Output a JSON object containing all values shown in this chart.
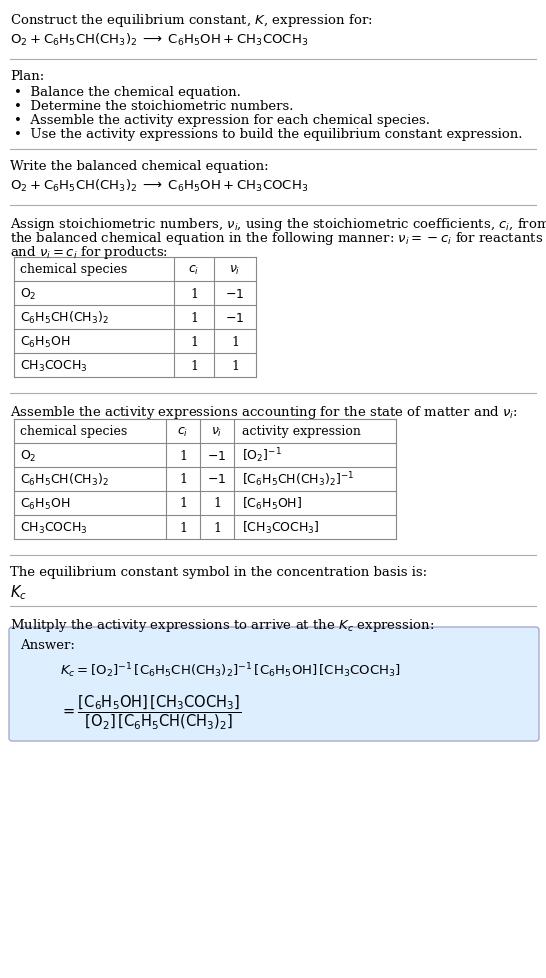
{
  "bg_color": "#ffffff",
  "text_color": "#000000",
  "answer_box_color": "#ddeeff",
  "title_line1": "Construct the equilibrium constant, $K$, expression for:",
  "title_line2": "$\\mathrm{O_2 + C_6H_5CH(CH_3)_2 \\;\\longrightarrow\\; C_6H_5OH + CH_3COCH_3}$",
  "plan_header": "Plan:",
  "plan_items": [
    "•  Balance the chemical equation.",
    "•  Determine the stoichiometric numbers.",
    "•  Assemble the activity expression for each chemical species.",
    "•  Use the activity expressions to build the equilibrium constant expression."
  ],
  "balanced_header": "Write the balanced chemical equation:",
  "balanced_eq": "$\\mathrm{O_2 + C_6H_5CH(CH_3)_2 \\;\\longrightarrow\\; C_6H_5OH + CH_3COCH_3}$",
  "stoich_header1": "Assign stoichiometric numbers, $\\nu_i$, using the stoichiometric coefficients, $c_i$, from",
  "stoich_header2": "the balanced chemical equation in the following manner: $\\nu_i = -c_i$ for reactants",
  "stoich_header3": "and $\\nu_i = c_i$ for products:",
  "table1_headers": [
    "chemical species",
    "$c_i$",
    "$\\nu_i$"
  ],
  "table1_rows": [
    [
      "$\\mathrm{O_2}$",
      "1",
      "$-1$"
    ],
    [
      "$\\mathrm{C_6H_5CH(CH_3)_2}$",
      "1",
      "$-1$"
    ],
    [
      "$\\mathrm{C_6H_5OH}$",
      "1",
      "1"
    ],
    [
      "$\\mathrm{CH_3COCH_3}$",
      "1",
      "1"
    ]
  ],
  "activity_header": "Assemble the activity expressions accounting for the state of matter and $\\nu_i$:",
  "table2_headers": [
    "chemical species",
    "$c_i$",
    "$\\nu_i$",
    "activity expression"
  ],
  "table2_rows": [
    [
      "$\\mathrm{O_2}$",
      "1",
      "$-1$",
      "$[\\mathrm{O_2}]^{-1}$"
    ],
    [
      "$\\mathrm{C_6H_5CH(CH_3)_2}$",
      "1",
      "$-1$",
      "$[\\mathrm{C_6H_5CH(CH_3)_2}]^{-1}$"
    ],
    [
      "$\\mathrm{C_6H_5OH}$",
      "1",
      "1",
      "$[\\mathrm{C_6H_5OH}]$"
    ],
    [
      "$\\mathrm{CH_3COCH_3}$",
      "1",
      "1",
      "$[\\mathrm{CH_3COCH_3}]$"
    ]
  ],
  "kc_symbol_header": "The equilibrium constant symbol in the concentration basis is:",
  "kc_symbol": "$K_c$",
  "multiply_header": "Mulitply the activity expressions to arrive at the $K_c$ expression:",
  "answer_label": "Answer:",
  "answer_line1": "$K_c = [\\mathrm{O_2}]^{-1}\\,[\\mathrm{C_6H_5CH(CH_3)_2}]^{-1}\\,[\\mathrm{C_6H_5OH}]\\,[\\mathrm{CH_3COCH_3}]$",
  "answer_line2_lhs": "$= \\dfrac{[\\mathrm{C_6H_5OH}]\\,[\\mathrm{CH_3COCH_3}]}{[\\mathrm{O_2}]\\,[\\mathrm{C_6H_5CH(CH_3)_2}]}$"
}
